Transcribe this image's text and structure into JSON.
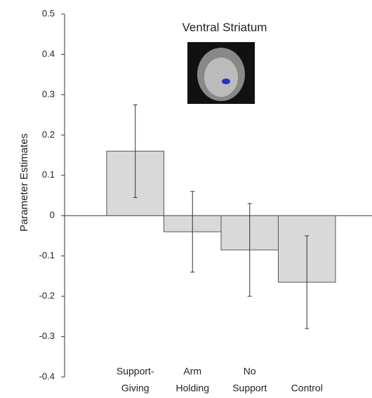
{
  "chart_data": {
    "type": "bar",
    "title": "Ventral Striatum",
    "y_label": "Parameter Estimates",
    "categories": [
      [
        "Support-",
        "Giving"
      ],
      [
        "Arm",
        "Holding"
      ],
      [
        "No",
        "Support"
      ],
      [
        "Control"
      ]
    ],
    "values": [
      0.16,
      -0.04,
      -0.085,
      -0.165
    ],
    "errors": [
      0.115,
      0.1,
      0.115,
      0.115
    ],
    "color": "#d9d9d9",
    "ylim": [
      -0.4,
      0.5
    ],
    "yticks": [
      -0.4,
      -0.3,
      -0.2,
      -0.1,
      0,
      0.1,
      0.2,
      0.3,
      0.4,
      0.5
    ],
    "grid": false
  }
}
